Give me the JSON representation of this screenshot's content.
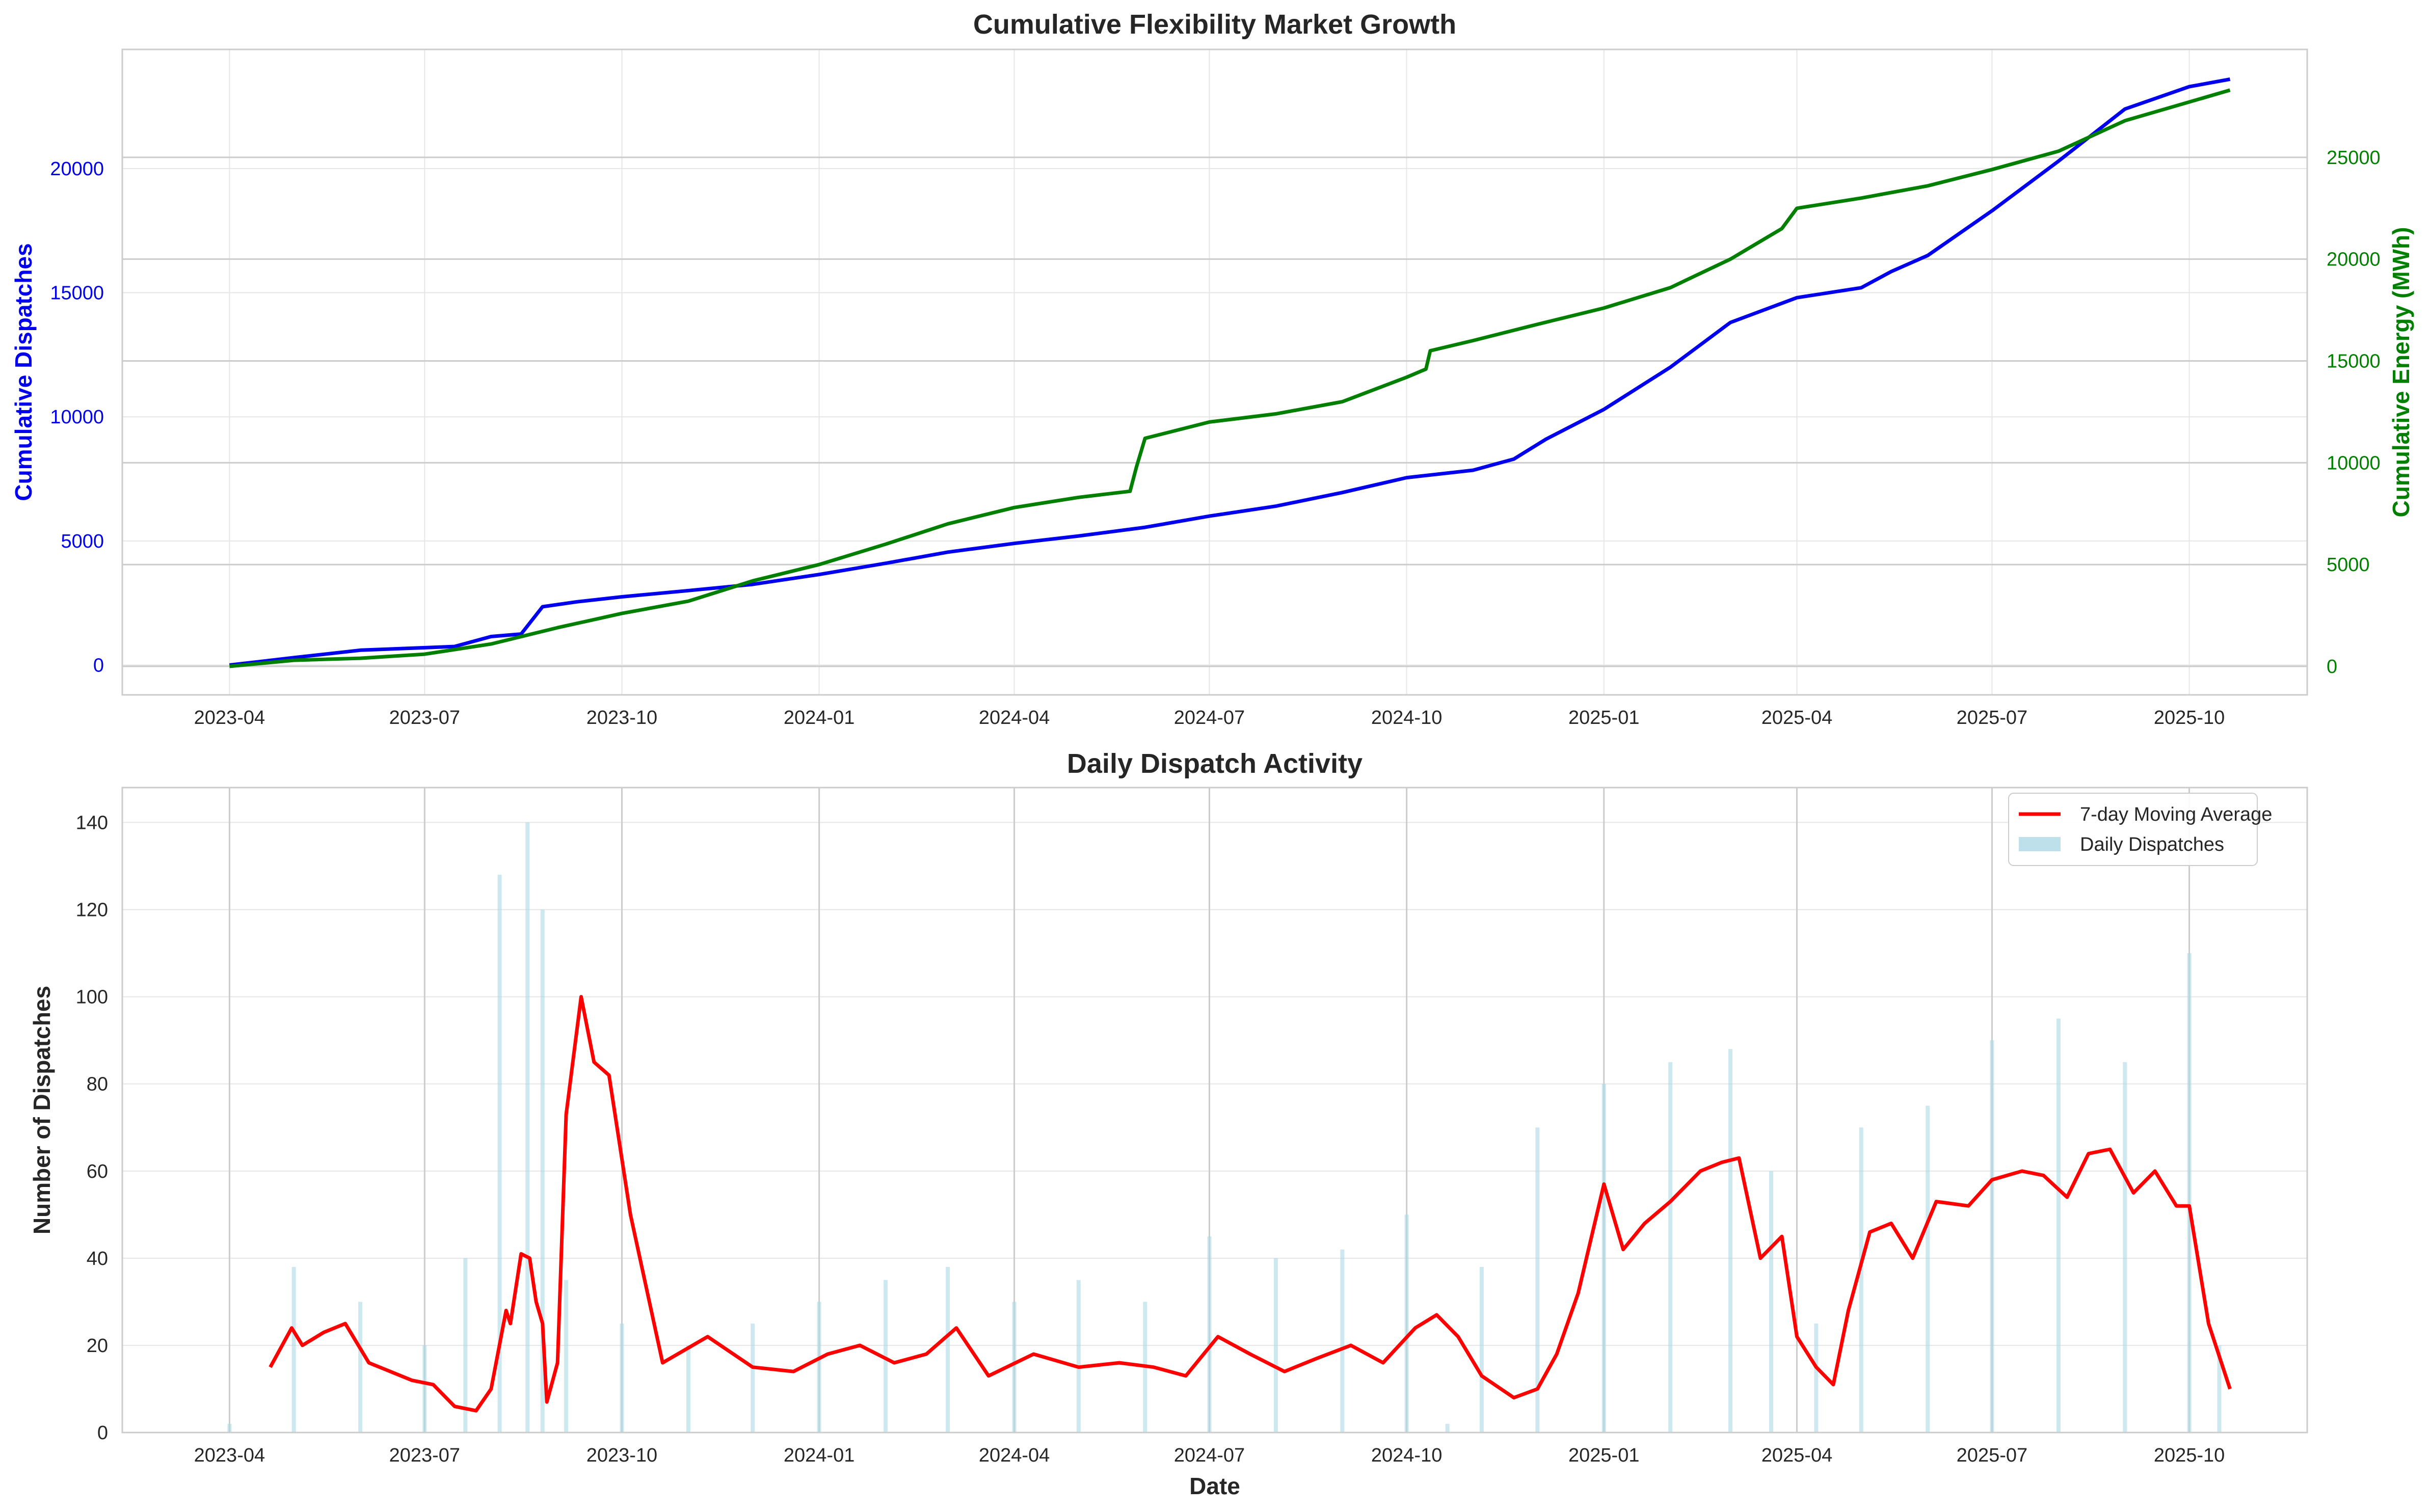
{
  "colors": {
    "dispatches_line": "#0000ee",
    "energy_line": "#007f00",
    "moving_avg_line": "#ff0000",
    "daily_bars": "#add8e6",
    "grid": "#e6e6e6",
    "ref_lines": "#cccccc",
    "axis_frame": "#cccccc",
    "text": "#262626"
  },
  "chart_data": [
    {
      "type": "line",
      "title": "Cumulative Flexibility Market Growth",
      "xlabel": "",
      "x_ticks": [
        "2023-04",
        "2023-07",
        "2023-10",
        "2024-01",
        "2024-04",
        "2024-07",
        "2024-10",
        "2025-01",
        "2025-04",
        "2025-07",
        "2025-10"
      ],
      "y_left": {
        "label": "Cumulative Dispatches",
        "ticks": [
          "0",
          "5000",
          "10000",
          "15000",
          "20000"
        ],
        "range": [
          -1200,
          24800
        ]
      },
      "y_right": {
        "label": "Cumulative Energy (MWh)",
        "ticks": [
          "0",
          "5000",
          "10000",
          "15000",
          "20000",
          "25000"
        ],
        "range": [
          -1400,
          30300
        ]
      },
      "grid": true,
      "series": [
        {
          "axis": "left",
          "x": [
            "2023-04-01",
            "2023-05-01",
            "2023-06-01",
            "2023-07-01",
            "2023-07-15",
            "2023-08-01",
            "2023-08-15",
            "2023-08-25",
            "2023-09-10",
            "2023-10-01",
            "2023-11-01",
            "2023-12-01",
            "2024-01-01",
            "2024-02-01",
            "2024-03-01",
            "2024-04-01",
            "2024-05-01",
            "2024-06-01",
            "2024-07-01",
            "2024-08-01",
            "2024-09-01",
            "2024-10-01",
            "2024-11-01",
            "2024-11-20",
            "2024-12-05",
            "2025-01-01",
            "2025-02-01",
            "2025-03-01",
            "2025-04-01",
            "2025-05-01",
            "2025-05-15",
            "2025-06-01",
            "2025-07-01",
            "2025-08-01",
            "2025-09-01",
            "2025-10-01",
            "2025-10-20"
          ],
          "y": [
            0,
            300,
            600,
            700,
            750,
            1150,
            1250,
            2350,
            2550,
            2750,
            3000,
            3250,
            3650,
            4100,
            4550,
            4900,
            5200,
            5550,
            6000,
            6400,
            6950,
            7550,
            7850,
            8300,
            9100,
            10300,
            12000,
            13800,
            14800,
            15200,
            15850,
            16500,
            18300,
            20300,
            22400,
            23300,
            23600
          ]
        },
        {
          "axis": "right",
          "x": [
            "2023-04-01",
            "2023-05-01",
            "2023-06-01",
            "2023-07-01",
            "2023-08-01",
            "2023-09-01",
            "2023-10-01",
            "2023-11-01",
            "2023-12-01",
            "2024-01-01",
            "2024-02-01",
            "2024-03-01",
            "2024-04-01",
            "2024-05-01",
            "2024-05-25",
            "2024-05-28",
            "2024-06-01",
            "2024-07-01",
            "2024-08-01",
            "2024-09-01",
            "2024-10-01",
            "2024-10-10",
            "2024-10-12",
            "2024-11-01",
            "2024-12-01",
            "2025-01-01",
            "2025-02-01",
            "2025-03-01",
            "2025-03-25",
            "2025-04-01",
            "2025-05-01",
            "2025-06-01",
            "2025-07-01",
            "2025-08-01",
            "2025-09-01",
            "2025-10-20"
          ],
          "y": [
            0,
            300,
            400,
            600,
            1100,
            1900,
            2600,
            3200,
            4200,
            5000,
            6000,
            7000,
            7800,
            8300,
            8600,
            9800,
            11200,
            12000,
            12400,
            13000,
            14200,
            14600,
            15500,
            16000,
            16800,
            17600,
            18600,
            20000,
            21500,
            22500,
            23000,
            23600,
            24400,
            25300,
            26800,
            28300
          ]
        }
      ]
    },
    {
      "type": "bar",
      "title": "Daily Dispatch Activity",
      "xlabel": "Date",
      "ylabel": "Number of Dispatches",
      "x_ticks": [
        "2023-04",
        "2023-07",
        "2023-10",
        "2024-01",
        "2024-04",
        "2024-07",
        "2024-10",
        "2025-01",
        "2025-04",
        "2025-07",
        "2025-10"
      ],
      "y_ticks": [
        "0",
        "20",
        "40",
        "60",
        "80",
        "100",
        "120",
        "140"
      ],
      "ylim": [
        0,
        148
      ],
      "grid": true,
      "legend_position": "top-right",
      "series": [
        {
          "name": "7-day Moving Average",
          "kind": "line",
          "x": [
            "2023-04-20",
            "2023-04-30",
            "2023-05-05",
            "2023-05-15",
            "2023-05-25",
            "2023-06-05",
            "2023-06-15",
            "2023-06-25",
            "2023-07-05",
            "2023-07-15",
            "2023-07-25",
            "2023-08-01",
            "2023-08-08",
            "2023-08-10",
            "2023-08-15",
            "2023-08-19",
            "2023-08-22",
            "2023-08-25",
            "2023-08-27",
            "2023-09-01",
            "2023-09-05",
            "2023-09-12",
            "2023-09-18",
            "2023-09-25",
            "2023-10-05",
            "2023-10-20",
            "2023-11-10",
            "2023-12-01",
            "2023-12-20",
            "2024-01-05",
            "2024-01-20",
            "2024-02-05",
            "2024-02-20",
            "2024-03-05",
            "2024-03-20",
            "2024-04-10",
            "2024-05-01",
            "2024-05-20",
            "2024-06-05",
            "2024-06-20",
            "2024-07-05",
            "2024-07-20",
            "2024-08-05",
            "2024-08-20",
            "2024-09-05",
            "2024-09-20",
            "2024-10-05",
            "2024-10-15",
            "2024-10-25",
            "2024-11-05",
            "2024-11-20",
            "2024-12-01",
            "2024-12-10",
            "2024-12-20",
            "2025-01-01",
            "2025-01-10",
            "2025-01-20",
            "2025-02-01",
            "2025-02-15",
            "2025-02-25",
            "2025-03-05",
            "2025-03-15",
            "2025-03-25",
            "2025-04-01",
            "2025-04-10",
            "2025-04-18",
            "2025-04-25",
            "2025-05-05",
            "2025-05-15",
            "2025-05-25",
            "2025-06-05",
            "2025-06-20",
            "2025-07-01",
            "2025-07-15",
            "2025-07-25",
            "2025-08-05",
            "2025-08-15",
            "2025-08-25",
            "2025-09-05",
            "2025-09-15",
            "2025-09-25",
            "2025-10-01",
            "2025-10-10",
            "2025-10-20"
          ],
          "y": [
            15,
            24,
            20,
            23,
            25,
            16,
            14,
            12,
            11,
            6,
            5,
            10,
            28,
            25,
            41,
            40,
            30,
            25,
            7,
            16,
            73,
            100,
            85,
            82,
            50,
            16,
            22,
            15,
            14,
            18,
            20,
            16,
            18,
            24,
            13,
            18,
            15,
            16,
            15,
            13,
            22,
            18,
            14,
            17,
            20,
            16,
            24,
            27,
            22,
            13,
            8,
            10,
            18,
            32,
            57,
            42,
            48,
            53,
            60,
            62,
            63,
            40,
            45,
            22,
            15,
            11,
            28,
            46,
            48,
            40,
            53,
            52,
            58,
            60,
            59,
            54,
            64,
            65,
            55,
            60,
            52,
            52,
            25,
            10
          ]
        },
        {
          "name": "Daily Dispatches",
          "kind": "bar",
          "x": [
            "2023-04-01",
            "2023-05-01",
            "2023-06-01",
            "2023-07-01",
            "2023-07-20",
            "2023-08-05",
            "2023-08-18",
            "2023-08-25",
            "2023-09-05",
            "2023-10-01",
            "2023-11-01",
            "2023-12-01",
            "2024-01-01",
            "2024-02-01",
            "2024-03-01",
            "2024-04-01",
            "2024-05-01",
            "2024-06-01",
            "2024-07-01",
            "2024-08-01",
            "2024-09-01",
            "2024-10-01",
            "2024-10-20",
            "2024-11-05",
            "2024-12-01",
            "2025-01-01",
            "2025-02-01",
            "2025-03-01",
            "2025-03-20",
            "2025-04-10",
            "2025-05-01",
            "2025-06-01",
            "2025-07-01",
            "2025-08-01",
            "2025-09-01",
            "2025-10-01",
            "2025-10-15"
          ],
          "y": [
            2,
            38,
            30,
            20,
            40,
            128,
            140,
            120,
            35,
            25,
            20,
            25,
            30,
            35,
            38,
            30,
            35,
            30,
            45,
            40,
            42,
            50,
            2,
            38,
            70,
            80,
            85,
            88,
            60,
            25,
            70,
            75,
            90,
            95,
            85,
            110,
            20
          ]
        }
      ]
    }
  ]
}
